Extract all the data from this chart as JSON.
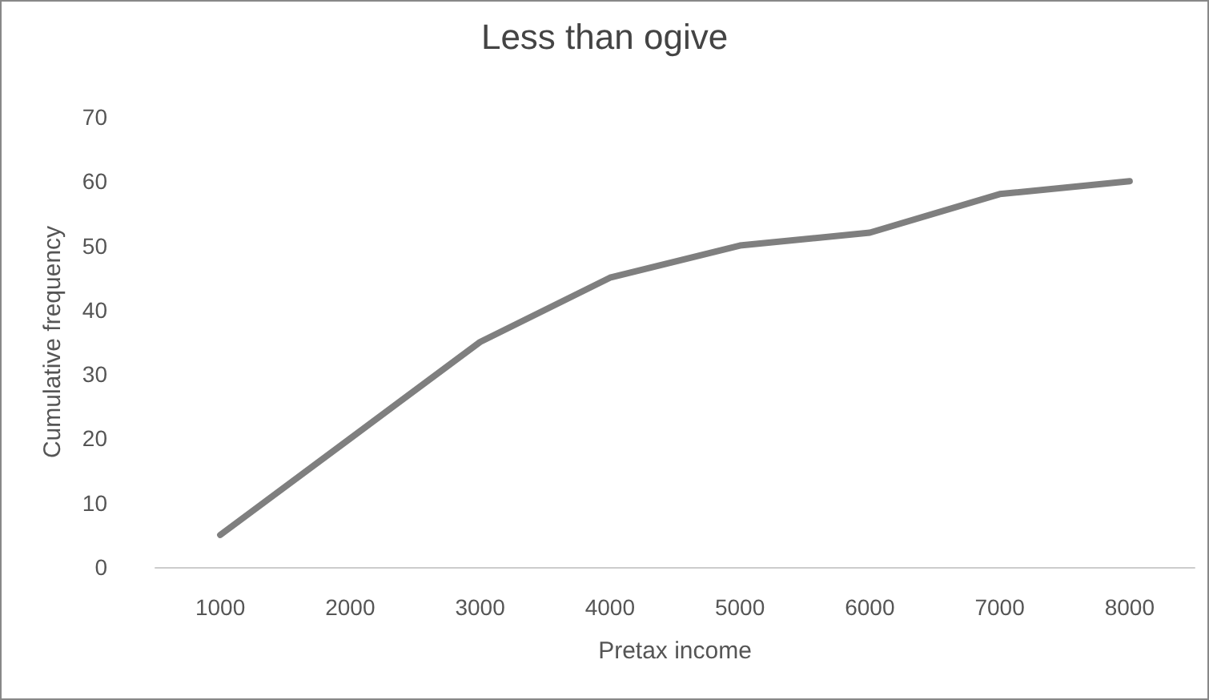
{
  "chart_data": {
    "type": "line",
    "title": "Less than ogive",
    "xlabel": "Pretax income",
    "ylabel": "Cumulative frequency",
    "categories": [
      "1000",
      "2000",
      "3000",
      "4000",
      "5000",
      "6000",
      "7000",
      "8000"
    ],
    "series": [
      {
        "color": "#7f7f7f",
        "values": [
          5,
          20,
          35,
          45,
          50,
          52,
          58,
          60
        ]
      }
    ],
    "ylim": [
      0,
      70
    ],
    "yticks": [
      0,
      10,
      20,
      30,
      40,
      50,
      60,
      70
    ],
    "grid": false,
    "marker": "none",
    "line_style": "solid"
  }
}
